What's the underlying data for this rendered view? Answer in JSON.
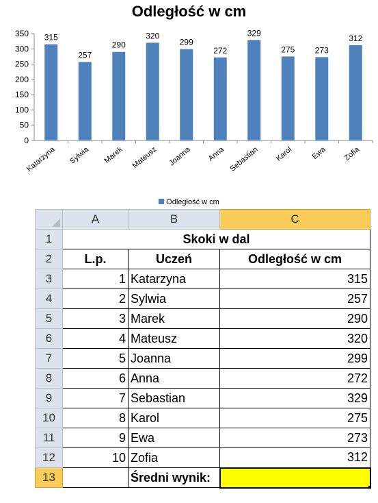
{
  "chart_data": {
    "type": "bar",
    "title": "Odległość w cm",
    "categories": [
      "Katarzyna",
      "Sylwia",
      "Marek",
      "Mateusz",
      "Joanna",
      "Anna",
      "Sebastian",
      "Karol",
      "Ewa",
      "Zofia"
    ],
    "series": [
      {
        "name": "Odległość w cm",
        "values": [
          315,
          257,
          290,
          320,
          299,
          272,
          329,
          275,
          273,
          312
        ]
      }
    ],
    "ylim": [
      0,
      350
    ],
    "yticks": [
      0,
      50,
      100,
      150,
      200,
      250,
      300,
      350
    ],
    "grid": false,
    "legend": "bottom",
    "bar_color": "#4f81bd"
  },
  "sheet": {
    "col_headers": [
      "A",
      "B",
      "C"
    ],
    "row_headers": [
      "1",
      "2",
      "3",
      "4",
      "5",
      "6",
      "7",
      "8",
      "9",
      "10",
      "11",
      "12",
      "13"
    ],
    "title": "Skoki w dal",
    "headers": {
      "lp": "L.p.",
      "student": "Uczeń",
      "distance": "Odległość w cm"
    },
    "rows": [
      {
        "lp": "1",
        "name": "Katarzyna",
        "dist": "315"
      },
      {
        "lp": "2",
        "name": "Sylwia",
        "dist": "257"
      },
      {
        "lp": "3",
        "name": "Marek",
        "dist": "290"
      },
      {
        "lp": "4",
        "name": "Mateusz",
        "dist": "320"
      },
      {
        "lp": "5",
        "name": "Joanna",
        "dist": "299"
      },
      {
        "lp": "6",
        "name": "Anna",
        "dist": "272"
      },
      {
        "lp": "7",
        "name": "Sebastian",
        "dist": "329"
      },
      {
        "lp": "8",
        "name": "Karol",
        "dist": "275"
      },
      {
        "lp": "9",
        "name": "Ewa",
        "dist": "273"
      },
      {
        "lp": "10",
        "name": "Zofia",
        "dist": "312"
      }
    ],
    "average_label": "Średni wynik:",
    "average_value": "",
    "selected_cell": "C13",
    "selection_color": "#ffff00",
    "header_highlight_color": "#f9cc5a"
  }
}
